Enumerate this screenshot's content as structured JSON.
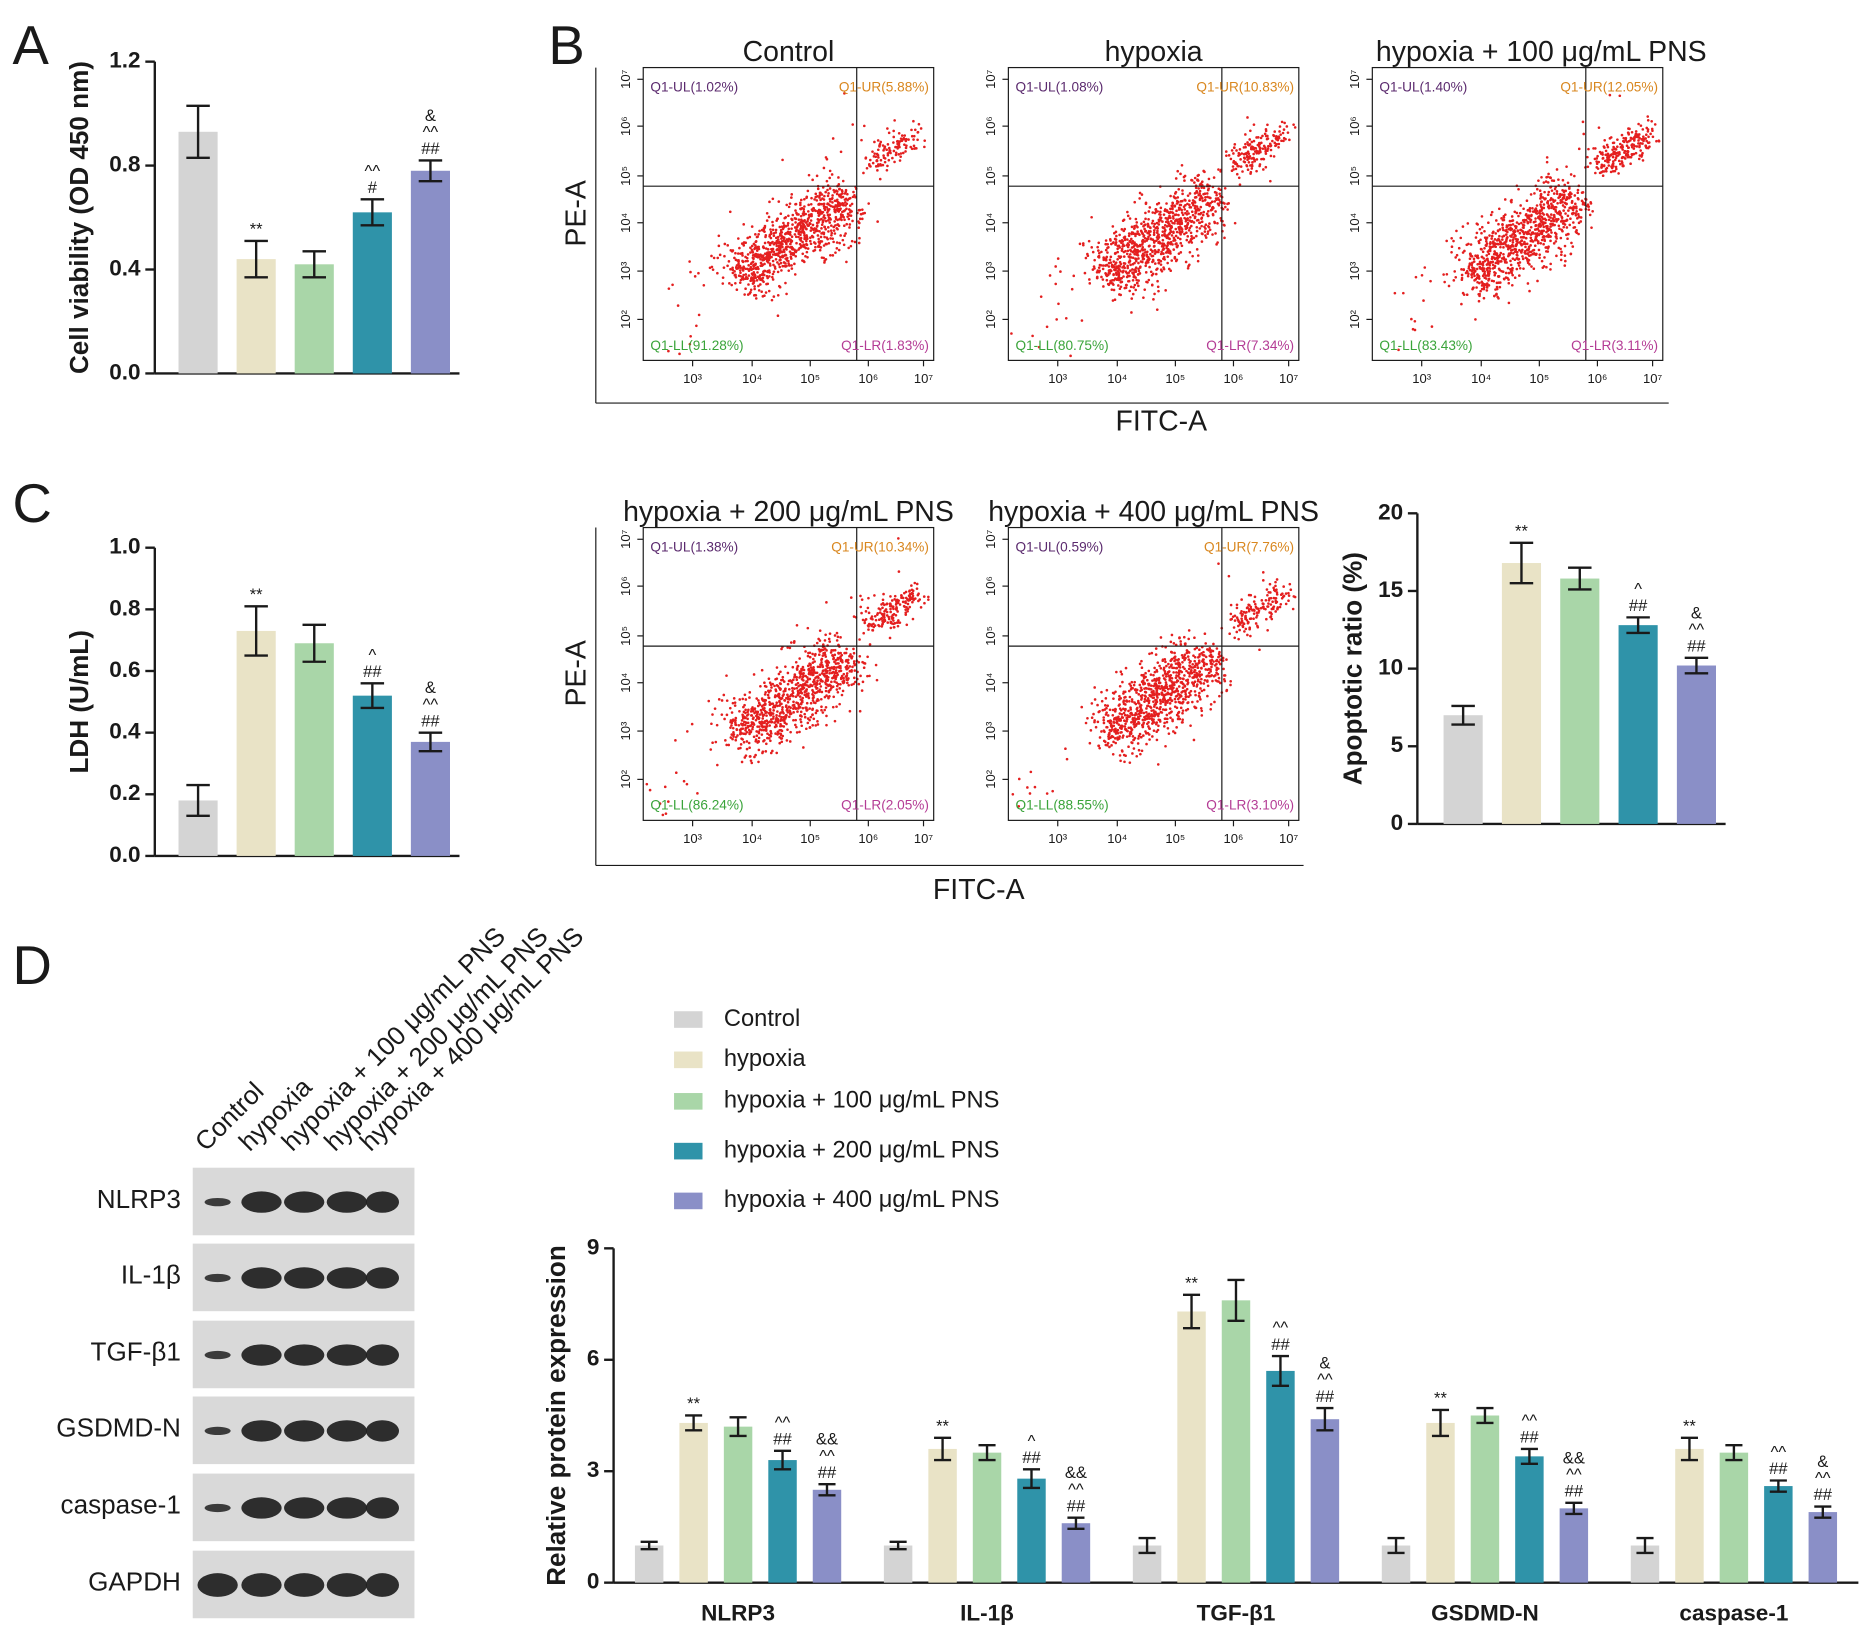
{
  "panel_labels": [
    "A",
    "B",
    "C",
    "D"
  ],
  "chart_data": [
    {
      "type": "bar",
      "ylabel": "Cell viability (OD 450 nm)",
      "categories": [
        null,
        null,
        null,
        null,
        null
      ],
      "colors": [
        "#d4d4d4",
        "#e9e3c6",
        "#a9d6a8",
        "#2f93a9",
        "#8a8fc7"
      ],
      "values": [
        0.93,
        0.44,
        0.42,
        0.62,
        0.78
      ],
      "errors": [
        0.1,
        0.07,
        0.05,
        0.05,
        0.04
      ],
      "annotations": [
        [],
        [
          "**"
        ],
        [],
        [
          "^^",
          "#"
        ],
        [
          "&",
          "^^",
          "##"
        ]
      ],
      "ylim": [
        0,
        1.2
      ],
      "yticks": [
        {
          "value": 0,
          "label": "0.0"
        },
        0.4,
        0.8,
        1.2
      ]
    },
    {
      "type": "bar",
      "ylabel": "LDH (U/mL)",
      "categories": [
        null,
        null,
        null,
        null,
        null
      ],
      "colors": [
        "#d4d4d4",
        "#e9e3c6",
        "#a9d6a8",
        "#2f93a9",
        "#8a8fc7"
      ],
      "values": [
        0.18,
        0.73,
        0.69,
        0.52,
        0.37
      ],
      "errors": [
        0.05,
        0.08,
        0.06,
        0.04,
        0.03
      ],
      "annotations": [
        [],
        [
          "**"
        ],
        [],
        [
          "^",
          "##"
        ],
        [
          "&",
          "^^",
          "##"
        ]
      ],
      "ylim": [
        0,
        1
      ],
      "yticks": [
        {
          "value": 0,
          "label": "0.0"
        },
        0.2,
        0.4,
        0.6,
        0.8,
        {
          "value": 1,
          "label": "1.0"
        }
      ]
    },
    {
      "type": "bar",
      "ylabel": "Apoptotic ratio (%)",
      "categories": [
        null,
        null,
        null,
        null,
        null
      ],
      "colors": [
        "#d4d4d4",
        "#e9e3c6",
        "#a9d6a8",
        "#2f93a9",
        "#8a8fc7"
      ],
      "values": [
        7.0,
        16.8,
        15.8,
        12.8,
        10.2
      ],
      "errors": [
        0.6,
        1.3,
        0.7,
        0.5,
        0.5
      ],
      "annotations": [
        [],
        [
          "**"
        ],
        [],
        [
          "^",
          "##"
        ],
        [
          "&",
          "^^",
          "##"
        ]
      ],
      "ylim": [
        0,
        20
      ],
      "yticks": [
        0,
        5,
        10,
        15,
        20
      ]
    },
    {
      "type": "bar",
      "ylabel": "Relative protein expression",
      "legend": "top-left",
      "categories": [
        "NLRP3",
        "IL-1β",
        "TGF-β1",
        "GSDMD-N",
        "caspase-1"
      ],
      "series": [
        {
          "name": "Control",
          "color": "#d4d4d4",
          "values": [
            1,
            1,
            1,
            1,
            1
          ],
          "errors": [
            0.1,
            0.1,
            0.2,
            0.2,
            0.2
          ],
          "annotations": [
            [],
            [],
            [],
            [],
            []
          ]
        },
        {
          "name": "hypoxia",
          "color": "#e9e3c6",
          "values": [
            4.3,
            3.6,
            7.3,
            4.3,
            3.6
          ],
          "errors": [
            0.2,
            0.3,
            0.45,
            0.35,
            0.3
          ],
          "annotations": [
            [
              "**"
            ],
            [
              "**"
            ],
            [
              "**"
            ],
            [
              "**"
            ],
            [
              "**"
            ]
          ]
        },
        {
          "name": "hypoxia + 100 μg/mL PNS",
          "color": "#a9d6a8",
          "values": [
            4.2,
            3.5,
            7.6,
            4.5,
            3.5
          ],
          "errors": [
            0.25,
            0.2,
            0.55,
            0.2,
            0.2
          ],
          "annotations": [
            [],
            [],
            [],
            [],
            []
          ]
        },
        {
          "name": "hypoxia + 200 μg/mL PNS",
          "color": "#2f93a9",
          "values": [
            3.3,
            2.8,
            5.7,
            3.4,
            2.6
          ],
          "errors": [
            0.25,
            0.25,
            0.4,
            0.2,
            0.15
          ],
          "annotations": [
            [
              "^^",
              "##"
            ],
            [
              "^",
              "##"
            ],
            [
              "^^",
              "##"
            ],
            [
              "^^",
              "##"
            ],
            [
              "^^",
              "##"
            ]
          ]
        },
        {
          "name": "hypoxia + 400 μg/mL PNS",
          "color": "#8a8fc7",
          "values": [
            2.5,
            1.6,
            4.4,
            2.0,
            1.9
          ],
          "errors": [
            0.15,
            0.15,
            0.3,
            0.15,
            0.15
          ],
          "annotations": [
            [
              "&&",
              "^^",
              "##"
            ],
            [
              "&&",
              "^^",
              "##"
            ],
            [
              "&",
              "^^",
              "##"
            ],
            [
              "&&",
              "^^",
              "##"
            ],
            [
              "&",
              "^^",
              "##"
            ]
          ]
        }
      ],
      "ylim": [
        0,
        9
      ],
      "yticks": [
        0,
        3,
        6,
        9
      ]
    }
  ],
  "flow_cytometry": {
    "xlabel": "FITC-A",
    "ylabel": "PE-A",
    "xticks": [
      "10³",
      "10⁴",
      "10⁵",
      "10⁶",
      "10⁷"
    ],
    "yticks": [
      "10²",
      "10³",
      "10⁴",
      "10⁵",
      "10⁶",
      "10⁷"
    ],
    "plots": [
      {
        "title": "Control",
        "quadrants": [
          "Q1-UL(1.02%)",
          "Q1-UR(5.88%)",
          "Q1-LL(91.28%)",
          "Q1-LR(1.83%)"
        ]
      },
      {
        "title": "hypoxia",
        "quadrants": [
          "Q1-UL(1.08%)",
          "Q1-UR(10.83%)",
          "Q1-LL(80.75%)",
          "Q1-LR(7.34%)"
        ]
      },
      {
        "title": "hypoxia + 100 μg/mL PNS",
        "quadrants": [
          "Q1-UL(1.40%)",
          "Q1-UR(12.05%)",
          "Q1-LL(83.43%)",
          "Q1-LR(3.11%)"
        ]
      },
      {
        "title": "hypoxia + 200 μg/mL PNS",
        "quadrants": [
          "Q1-UL(1.38%)",
          "Q1-UR(10.34%)",
          "Q1-LL(86.24%)",
          "Q1-LR(2.05%)"
        ]
      },
      {
        "title": "hypoxia + 400 μg/mL PNS",
        "quadrants": [
          "Q1-UL(0.59%)",
          "Q1-UR(7.76%)",
          "Q1-LL(88.55%)",
          "Q1-LR(3.10%)"
        ]
      }
    ]
  },
  "western_blot": {
    "lanes": [
      "Control",
      "hypoxia",
      "hypoxia + 100 μg/mL PNS",
      "hypoxia + 200 μg/mL PNS",
      "hypoxia + 400 μg/mL PNS"
    ],
    "proteins": [
      "NLRP3",
      "IL-1β",
      "TGF-β1",
      "GSDMD-N",
      "caspase-1",
      "GAPDH"
    ]
  }
}
